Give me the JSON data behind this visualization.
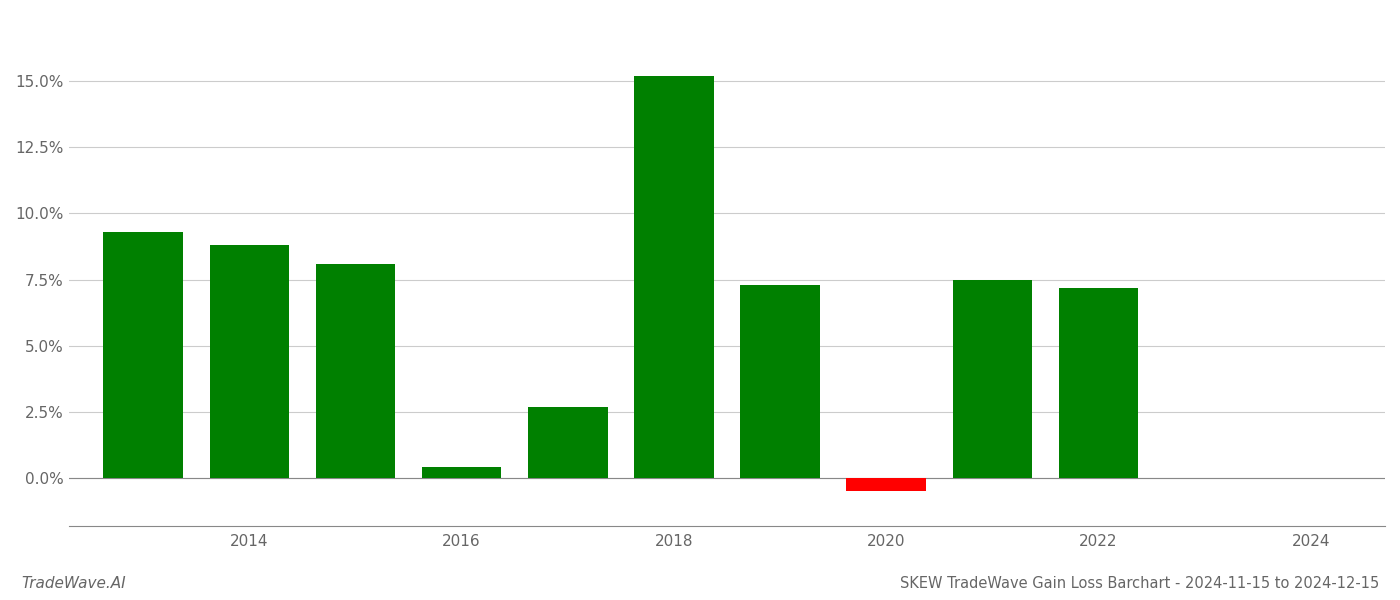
{
  "years": [
    2013,
    2014,
    2015,
    2016,
    2017,
    2018,
    2019,
    2020,
    2021,
    2022,
    2023
  ],
  "values": [
    0.093,
    0.088,
    0.081,
    0.004,
    0.027,
    0.152,
    0.073,
    -0.005,
    0.075,
    0.072,
    0.0
  ],
  "bar_colors": [
    "#008000",
    "#008000",
    "#008000",
    "#008000",
    "#008000",
    "#008000",
    "#008000",
    "#ff0000",
    "#008000",
    "#008000",
    "#008000"
  ],
  "title": "SKEW TradeWave Gain Loss Barchart - 2024-11-15 to 2024-12-15",
  "watermark": "TradeWave.AI",
  "ylim": [
    -0.018,
    0.175
  ],
  "ytick_values": [
    0.0,
    0.025,
    0.05,
    0.075,
    0.1,
    0.125,
    0.15
  ],
  "ytick_labels": [
    "0.0%",
    "2.5%",
    "5.0%",
    "7.5%",
    "10.0%",
    "12.5%",
    "15.0%"
  ],
  "xtick_values": [
    2014,
    2016,
    2018,
    2020,
    2022,
    2024
  ],
  "xlim": [
    2012.3,
    2024.7
  ],
  "background_color": "#ffffff",
  "grid_color": "#cccccc",
  "bar_width": 0.75
}
